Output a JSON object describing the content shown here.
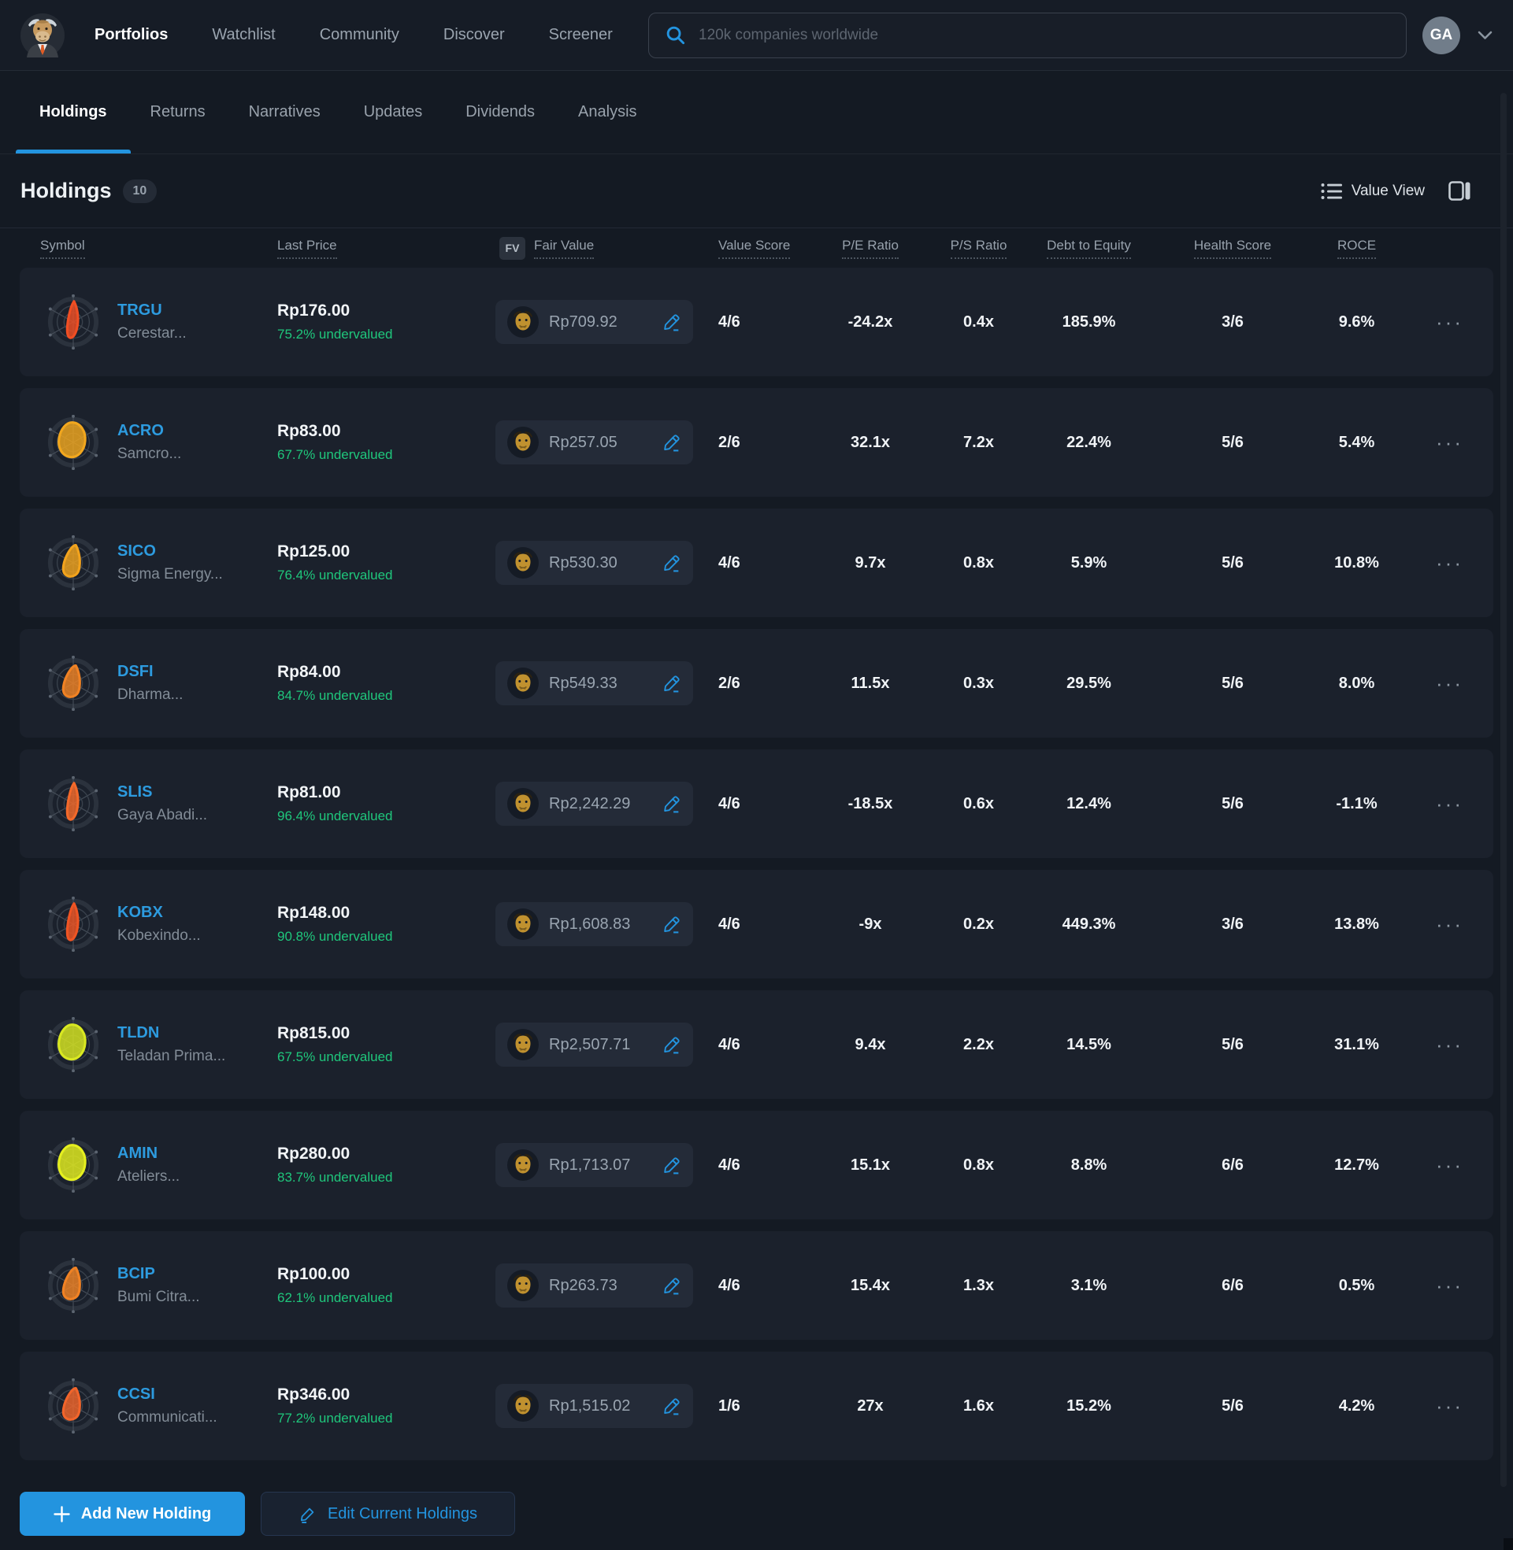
{
  "navbar": {
    "logo": "simply-wall-st-bull",
    "items": [
      "Portfolios",
      "Watchlist",
      "Community",
      "Discover",
      "Screener"
    ],
    "search_placeholder": "120k companies worldwide",
    "avatar_initials": "GA"
  },
  "tabs": [
    "Holdings",
    "Returns",
    "Narratives",
    "Updates",
    "Dividends",
    "Analysis"
  ],
  "section": {
    "title": "Holdings",
    "count": "10",
    "view_label": "Value View"
  },
  "table": {
    "fv_badge": "FV",
    "columns": {
      "symbol": "Symbol",
      "last_price": "Last Price",
      "fair_value": "Fair Value",
      "value_score": "Value Score",
      "pe_ratio": "P/E Ratio",
      "ps_ratio": "P/S Ratio",
      "debt_to_equity": "Debt to Equity",
      "health_score": "Health Score",
      "roce": "ROCE"
    },
    "rows": [
      {
        "symbol": "TRGU",
        "company": "Cerestar...",
        "last_price": "Rp176.00",
        "undervalued": "75.2% undervalued",
        "fair_value": "Rp709.92",
        "value_score": "4/6",
        "pe": "-24.2x",
        "ps": "0.4x",
        "debt_to_equity": "185.9%",
        "health_score": "3/6",
        "roce": "9.6%",
        "snowflake": {
          "color": "#f04e23",
          "shape": "narrow"
        }
      },
      {
        "symbol": "ACRO",
        "company": "Samcro...",
        "last_price": "Rp83.00",
        "undervalued": "67.7% undervalued",
        "fair_value": "Rp257.05",
        "value_score": "2/6",
        "pe": "32.1x",
        "ps": "7.2x",
        "debt_to_equity": "22.4%",
        "health_score": "5/6",
        "roce": "5.4%",
        "snowflake": {
          "color": "#f2a71e",
          "shape": "wide"
        }
      },
      {
        "symbol": "SICO",
        "company": "Sigma Energy...",
        "last_price": "Rp125.00",
        "undervalued": "76.4% undervalued",
        "fair_value": "Rp530.30",
        "value_score": "4/6",
        "pe": "9.7x",
        "ps": "0.8x",
        "debt_to_equity": "5.9%",
        "health_score": "5/6",
        "roce": "10.8%",
        "snowflake": {
          "color": "#f2a31d",
          "shape": "medium"
        }
      },
      {
        "symbol": "DSFI",
        "company": "Dharma...",
        "last_price": "Rp84.00",
        "undervalued": "84.7% undervalued",
        "fair_value": "Rp549.33",
        "value_score": "2/6",
        "pe": "11.5x",
        "ps": "0.3x",
        "debt_to_equity": "29.5%",
        "health_score": "5/6",
        "roce": "8.0%",
        "snowflake": {
          "color": "#f08224",
          "shape": "medium"
        }
      },
      {
        "symbol": "SLIS",
        "company": "Gaya Abadi...",
        "last_price": "Rp81.00",
        "undervalued": "96.4% undervalued",
        "fair_value": "Rp2,242.29",
        "value_score": "4/6",
        "pe": "-18.5x",
        "ps": "0.6x",
        "debt_to_equity": "12.4%",
        "health_score": "5/6",
        "roce": "-1.1%",
        "snowflake": {
          "color": "#f3692a",
          "shape": "narrow"
        }
      },
      {
        "symbol": "KOBX",
        "company": "Kobexindo...",
        "last_price": "Rp148.00",
        "undervalued": "90.8% undervalued",
        "fair_value": "Rp1,608.83",
        "value_score": "4/6",
        "pe": "-9x",
        "ps": "0.2x",
        "debt_to_equity": "449.3%",
        "health_score": "3/6",
        "roce": "13.8%",
        "snowflake": {
          "color": "#ef5423",
          "shape": "narrow"
        }
      },
      {
        "symbol": "TLDN",
        "company": "Teladan Prima...",
        "last_price": "Rp815.00",
        "undervalued": "67.5% undervalued",
        "fair_value": "Rp2,507.71",
        "value_score": "4/6",
        "pe": "9.4x",
        "ps": "2.2x",
        "debt_to_equity": "14.5%",
        "health_score": "5/6",
        "roce": "31.1%",
        "snowflake": {
          "color": "#d9e821",
          "shape": "wide"
        }
      },
      {
        "symbol": "AMIN",
        "company": "Ateliers...",
        "last_price": "Rp280.00",
        "undervalued": "83.7% undervalued",
        "fair_value": "Rp1,713.07",
        "value_score": "4/6",
        "pe": "15.1x",
        "ps": "0.8x",
        "debt_to_equity": "8.8%",
        "health_score": "6/6",
        "roce": "12.7%",
        "snowflake": {
          "color": "#e5ef1f",
          "shape": "wide"
        }
      },
      {
        "symbol": "BCIP",
        "company": "Bumi Citra...",
        "last_price": "Rp100.00",
        "undervalued": "62.1% undervalued",
        "fair_value": "Rp263.73",
        "value_score": "4/6",
        "pe": "15.4x",
        "ps": "1.3x",
        "debt_to_equity": "3.1%",
        "health_score": "6/6",
        "roce": "0.5%",
        "snowflake": {
          "color": "#f08224",
          "shape": "medium"
        }
      },
      {
        "symbol": "CCSI",
        "company": "Communicati...",
        "last_price": "Rp346.00",
        "undervalued": "77.2% undervalued",
        "fair_value": "Rp1,515.02",
        "value_score": "1/6",
        "pe": "27x",
        "ps": "1.6x",
        "debt_to_equity": "15.2%",
        "health_score": "5/6",
        "roce": "4.2%",
        "snowflake": {
          "color": "#f2652b",
          "shape": "medium"
        }
      }
    ]
  },
  "actions": {
    "add": "Add New Holding",
    "edit": "Edit Current Holdings"
  },
  "colors": {
    "accent": "#2394df",
    "positive": "#1fc77c",
    "ticker": "#2d9bdf",
    "row_background": "#1b212c",
    "page_background": "#141a23"
  }
}
